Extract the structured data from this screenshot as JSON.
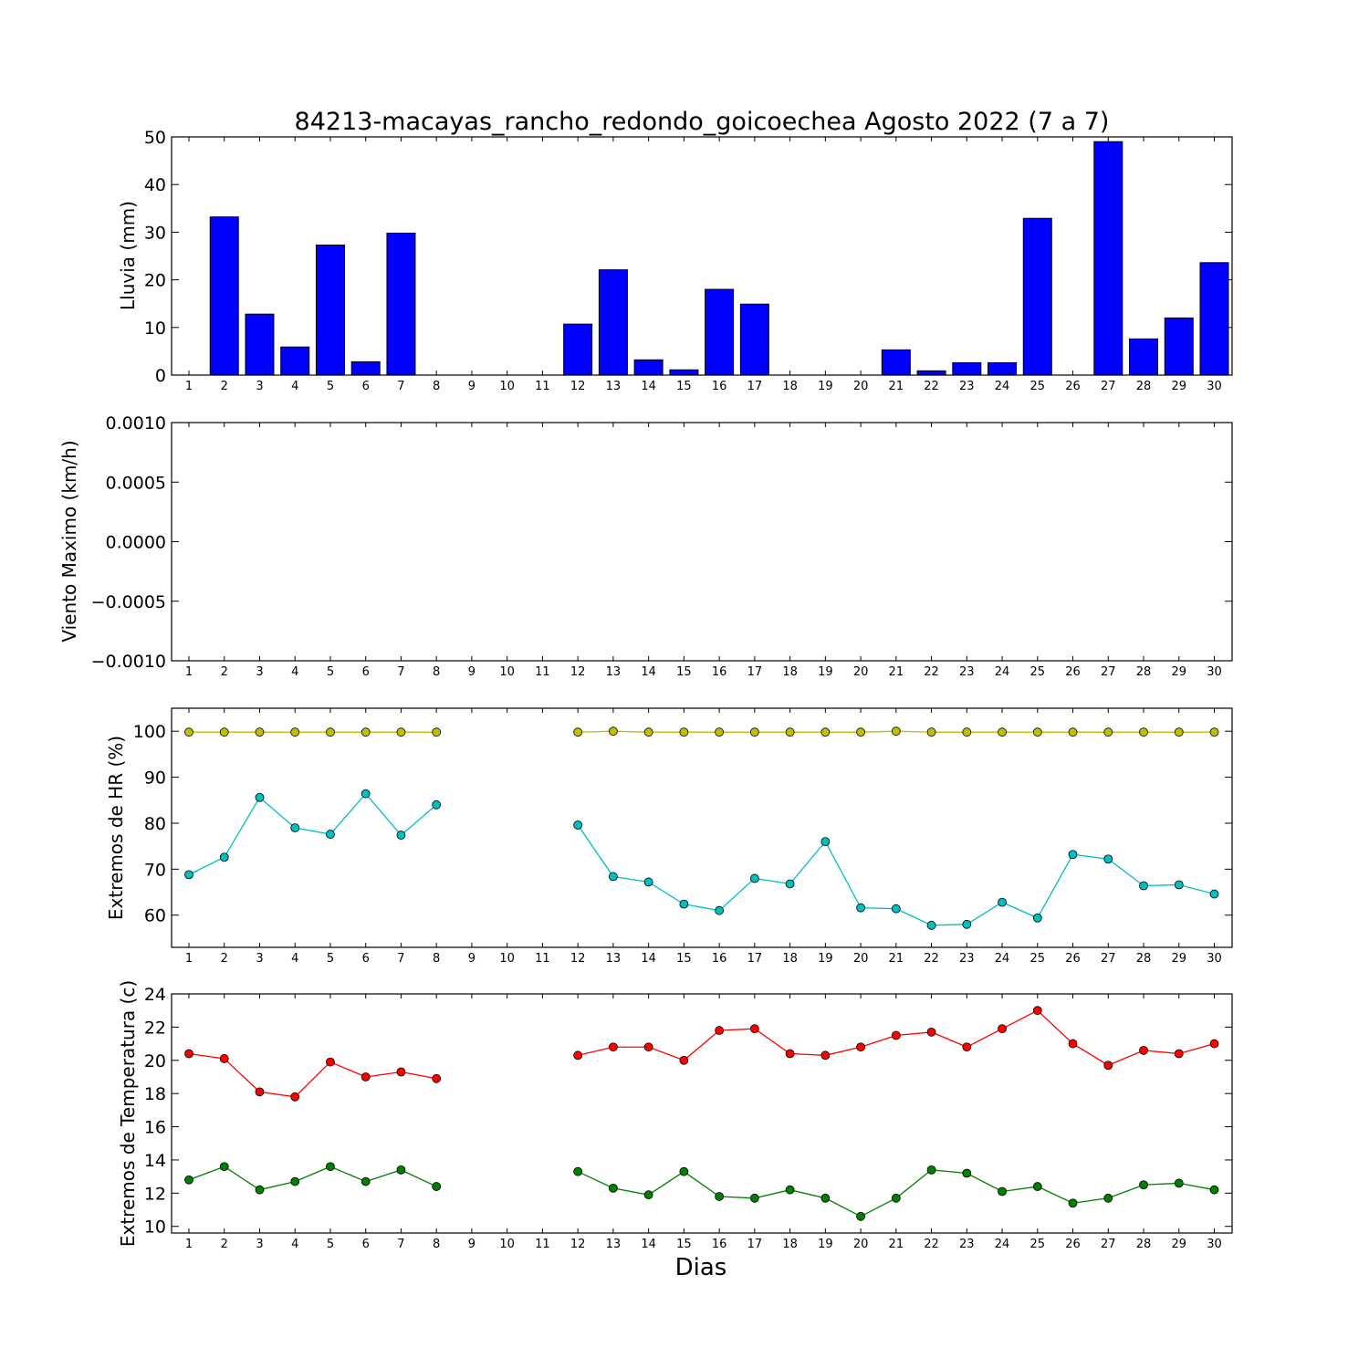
{
  "chart_data": [
    {
      "type": "bar",
      "title": "84213-macayas_rancho_redondo_goicoechea Agosto 2022  (7 a 7)",
      "ylabel": "Lluvia (mm)",
      "xlabel": "",
      "categories": [
        "1",
        "2",
        "3",
        "4",
        "5",
        "6",
        "7",
        "8",
        "9",
        "10",
        "11",
        "12",
        "13",
        "14",
        "15",
        "16",
        "17",
        "18",
        "19",
        "20",
        "21",
        "22",
        "23",
        "24",
        "25",
        "26",
        "27",
        "28",
        "29",
        "30"
      ],
      "values": [
        0,
        33.2,
        12.8,
        5.9,
        27.3,
        2.8,
        29.8,
        0,
        0,
        0,
        0,
        10.7,
        22.1,
        3.2,
        1.1,
        18.0,
        14.9,
        0,
        0,
        0,
        5.3,
        0.9,
        2.6,
        2.6,
        32.9,
        0,
        49.0,
        7.6,
        12.0,
        23.6
      ],
      "ylim": [
        0,
        50
      ],
      "yticks": [
        "0",
        "10",
        "20",
        "30",
        "40",
        "50"
      ],
      "bar_color": "#0000ff",
      "grid": false
    },
    {
      "type": "line",
      "title": "",
      "ylabel": "Viento Maximo (km/h)",
      "xlabel": "",
      "categories": [
        "1",
        "2",
        "3",
        "4",
        "5",
        "6",
        "7",
        "8",
        "9",
        "10",
        "11",
        "12",
        "13",
        "14",
        "15",
        "16",
        "17",
        "18",
        "19",
        "20",
        "21",
        "22",
        "23",
        "24",
        "25",
        "26",
        "27",
        "28",
        "29",
        "30"
      ],
      "series": [],
      "ylim": [
        -0.001,
        0.001
      ],
      "yticks": [
        "−0.0010",
        "−0.0005",
        "0.0000",
        "0.0005",
        "0.0010"
      ],
      "grid": false
    },
    {
      "type": "line",
      "title": "",
      "ylabel": "Extremos de HR (%)",
      "xlabel": "",
      "categories": [
        "1",
        "2",
        "3",
        "4",
        "5",
        "6",
        "7",
        "8",
        "9",
        "10",
        "11",
        "12",
        "13",
        "14",
        "15",
        "16",
        "17",
        "18",
        "19",
        "20",
        "21",
        "22",
        "23",
        "24",
        "25",
        "26",
        "27",
        "28",
        "29",
        "30"
      ],
      "series": [
        {
          "color": "#bfbf00",
          "values": [
            99.8,
            99.8,
            99.8,
            99.8,
            99.8,
            99.8,
            99.8,
            99.8,
            null,
            null,
            null,
            99.8,
            100,
            99.8,
            99.8,
            99.8,
            99.8,
            99.8,
            99.8,
            99.8,
            100,
            99.8,
            99.8,
            99.8,
            99.8,
            99.8,
            99.8,
            99.8,
            99.8,
            99.8
          ]
        },
        {
          "color": "#00bfbf",
          "values": [
            68.8,
            72.6,
            85.6,
            79.0,
            77.6,
            86.4,
            77.4,
            84.0,
            null,
            null,
            null,
            79.6,
            68.4,
            67.2,
            62.4,
            61.0,
            68.0,
            66.8,
            76.0,
            61.6,
            61.4,
            57.8,
            58.0,
            62.8,
            59.4,
            73.2,
            72.2,
            66.4,
            66.6,
            64.6
          ]
        }
      ],
      "ylim": [
        53,
        105
      ],
      "yticks": [
        "60",
        "70",
        "80",
        "90",
        "100"
      ],
      "grid": false
    },
    {
      "type": "line",
      "title": "",
      "ylabel": "Extremos de Temperatura (c)",
      "xlabel": "Dias",
      "categories": [
        "1",
        "2",
        "3",
        "4",
        "5",
        "6",
        "7",
        "8",
        "9",
        "10",
        "11",
        "12",
        "13",
        "14",
        "15",
        "16",
        "17",
        "18",
        "19",
        "20",
        "21",
        "22",
        "23",
        "24",
        "25",
        "26",
        "27",
        "28",
        "29",
        "30"
      ],
      "series": [
        {
          "color": "#ff0000",
          "values": [
            20.4,
            20.1,
            18.1,
            17.8,
            19.9,
            19.0,
            19.3,
            18.9,
            null,
            null,
            null,
            20.3,
            20.8,
            20.8,
            20.0,
            21.8,
            21.9,
            20.4,
            20.3,
            20.8,
            21.5,
            21.7,
            20.8,
            21.9,
            23.0,
            21.0,
            19.7,
            20.6,
            20.4,
            21.0
          ]
        },
        {
          "color": "#007f00",
          "values": [
            12.8,
            13.6,
            12.2,
            12.7,
            13.6,
            12.7,
            13.4,
            12.4,
            null,
            null,
            null,
            13.3,
            12.3,
            11.9,
            13.3,
            11.8,
            11.7,
            12.2,
            11.7,
            10.6,
            11.7,
            13.4,
            13.2,
            12.1,
            12.4,
            11.4,
            11.7,
            12.5,
            12.6,
            12.2
          ]
        }
      ],
      "ylim": [
        9.6,
        24
      ],
      "yticks": [
        "10",
        "12",
        "14",
        "16",
        "18",
        "20",
        "22",
        "24"
      ],
      "grid": false
    }
  ]
}
